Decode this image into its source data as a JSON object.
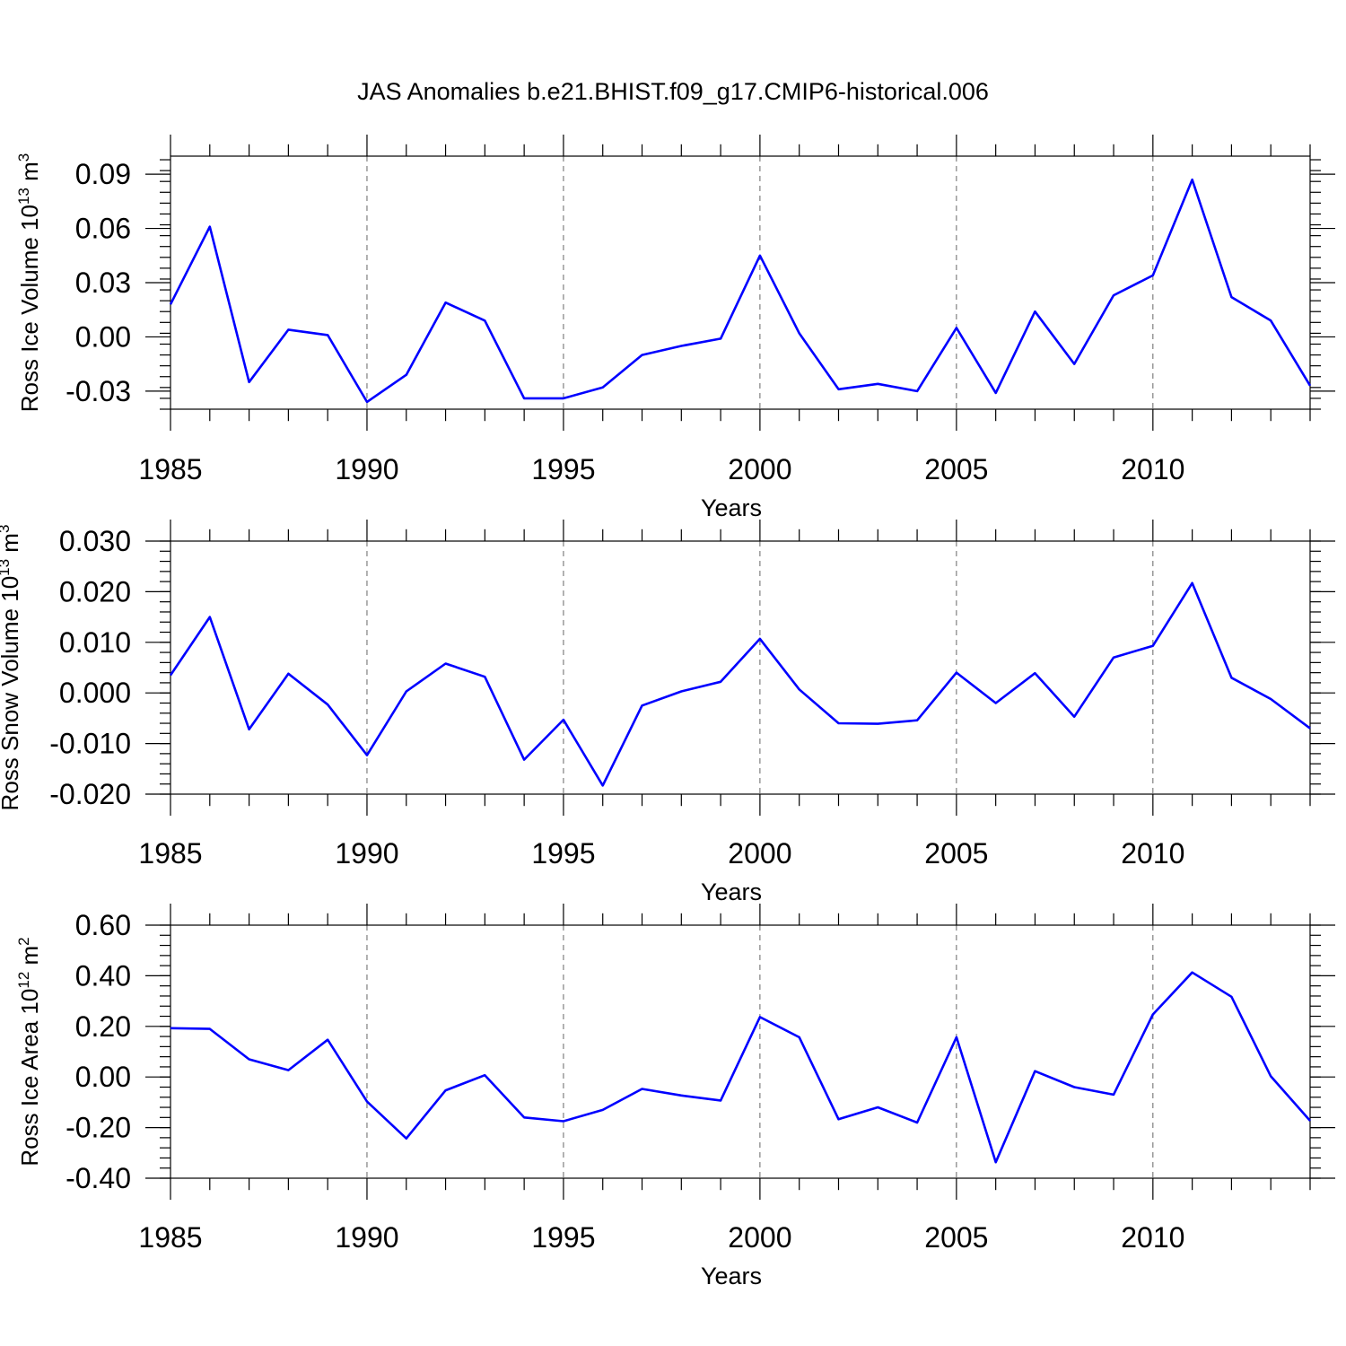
{
  "chart_data": [
    {
      "type": "line",
      "title": "JAS Anomalies b.e21.BHIST.f09_g17.CMIP6-historical.006",
      "ylabel_main": "Ross Ice Volume 10",
      "ylabel_sup": "13",
      "ylabel_unit": " m",
      "ylabel_unit_sup": "3",
      "xlabel": "Years",
      "xlim": [
        1985,
        2014
      ],
      "ylim": [
        -0.04,
        0.1
      ],
      "x_ticks": [
        1985,
        1990,
        1995,
        2000,
        2005,
        2010
      ],
      "x_tick_labels": [
        "1985",
        "1990",
        "1995",
        "2000",
        "2005",
        "2010"
      ],
      "y_ticks": [
        -0.03,
        0,
        0.03,
        0.06,
        0.09
      ],
      "y_tick_labels": [
        "-0.03",
        "0.00",
        "0.03",
        "0.06",
        "0.09"
      ],
      "y_minor_step": 0.006,
      "grid_x": true,
      "color": "#0000ff",
      "series": [
        {
          "name": "Ross Ice Volume",
          "x": [
            1985,
            1986,
            1987,
            1988,
            1989,
            1990,
            1991,
            1992,
            1993,
            1994,
            1995,
            1996,
            1997,
            1998,
            1999,
            2000,
            2001,
            2002,
            2003,
            2004,
            2005,
            2006,
            2007,
            2008,
            2009,
            2010,
            2011,
            2012,
            2013,
            2014
          ],
          "values": [
            0.018,
            0.061,
            -0.025,
            0.004,
            0.001,
            -0.036,
            -0.021,
            0.019,
            0.009,
            -0.034,
            -0.034,
            -0.028,
            -0.01,
            -0.005,
            -0.001,
            0.045,
            0.002,
            -0.029,
            -0.026,
            -0.03,
            0.005,
            -0.031,
            0.014,
            -0.015,
            0.023,
            0.034,
            0.087,
            0.022,
            0.009,
            -0.027
          ]
        }
      ]
    },
    {
      "type": "line",
      "title": "",
      "ylabel_main": "Ross Snow Volume 10",
      "ylabel_sup": "13",
      "ylabel_unit": " m",
      "ylabel_unit_sup": "3",
      "xlabel": "Years",
      "xlim": [
        1985,
        2014
      ],
      "ylim": [
        -0.02,
        0.03
      ],
      "x_ticks": [
        1985,
        1990,
        1995,
        2000,
        2005,
        2010
      ],
      "x_tick_labels": [
        "1985",
        "1990",
        "1995",
        "2000",
        "2005",
        "2010"
      ],
      "y_ticks": [
        -0.02,
        -0.01,
        0,
        0.01,
        0.02,
        0.03
      ],
      "y_tick_labels": [
        "-0.020",
        "-0.010",
        "0.000",
        "0.010",
        "0.020",
        "0.030"
      ],
      "y_minor_step": 0.002,
      "grid_x": true,
      "color": "#0000ff",
      "series": [
        {
          "name": "Ross Snow Volume",
          "x": [
            1985,
            1986,
            1987,
            1988,
            1989,
            1990,
            1991,
            1992,
            1993,
            1994,
            1995,
            1996,
            1997,
            1998,
            1999,
            2000,
            2001,
            2002,
            2003,
            2004,
            2005,
            2006,
            2007,
            2008,
            2009,
            2010,
            2011,
            2012,
            2013,
            2014
          ],
          "values": [
            0.0035,
            0.015,
            -0.0072,
            0.0038,
            -0.0023,
            -0.0123,
            0.0003,
            0.0058,
            0.0032,
            -0.0132,
            -0.0053,
            -0.0183,
            -0.0025,
            0.0003,
            0.0022,
            0.0107,
            0.0007,
            -0.006,
            -0.0061,
            -0.0054,
            0.004,
            -0.002,
            0.0039,
            -0.0047,
            0.007,
            0.0093,
            0.0217,
            0.003,
            -0.0012,
            -0.007
          ]
        }
      ]
    },
    {
      "type": "line",
      "title": "",
      "ylabel_main": "Ross Ice Area 10",
      "ylabel_sup": "12",
      "ylabel_unit": " m",
      "ylabel_unit_sup": "2",
      "xlabel": "Years",
      "xlim": [
        1985,
        2014
      ],
      "ylim": [
        -0.4,
        0.6
      ],
      "x_ticks": [
        1985,
        1990,
        1995,
        2000,
        2005,
        2010
      ],
      "x_tick_labels": [
        "1985",
        "1990",
        "1995",
        "2000",
        "2005",
        "2010"
      ],
      "y_ticks": [
        -0.4,
        -0.2,
        0,
        0.2,
        0.4,
        0.6
      ],
      "y_tick_labels": [
        "-0.40",
        "-0.20",
        "0.00",
        "0.20",
        "0.40",
        "0.60"
      ],
      "y_minor_step": 0.04,
      "grid_x": true,
      "color": "#0000ff",
      "series": [
        {
          "name": "Ross Ice Area",
          "x": [
            1985,
            1986,
            1987,
            1988,
            1989,
            1990,
            1991,
            1992,
            1993,
            1994,
            1995,
            1996,
            1997,
            1998,
            1999,
            2000,
            2001,
            2002,
            2003,
            2004,
            2005,
            2006,
            2007,
            2008,
            2009,
            2010,
            2011,
            2012,
            2013,
            2014
          ],
          "values": [
            0.193,
            0.19,
            0.07,
            0.027,
            0.147,
            -0.097,
            -0.243,
            -0.053,
            0.007,
            -0.16,
            -0.175,
            -0.13,
            -0.047,
            -0.073,
            -0.093,
            0.237,
            0.157,
            -0.167,
            -0.12,
            -0.18,
            0.157,
            -0.337,
            0.023,
            -0.04,
            -0.07,
            0.247,
            0.413,
            0.317,
            0.003,
            -0.173
          ]
        }
      ]
    }
  ]
}
